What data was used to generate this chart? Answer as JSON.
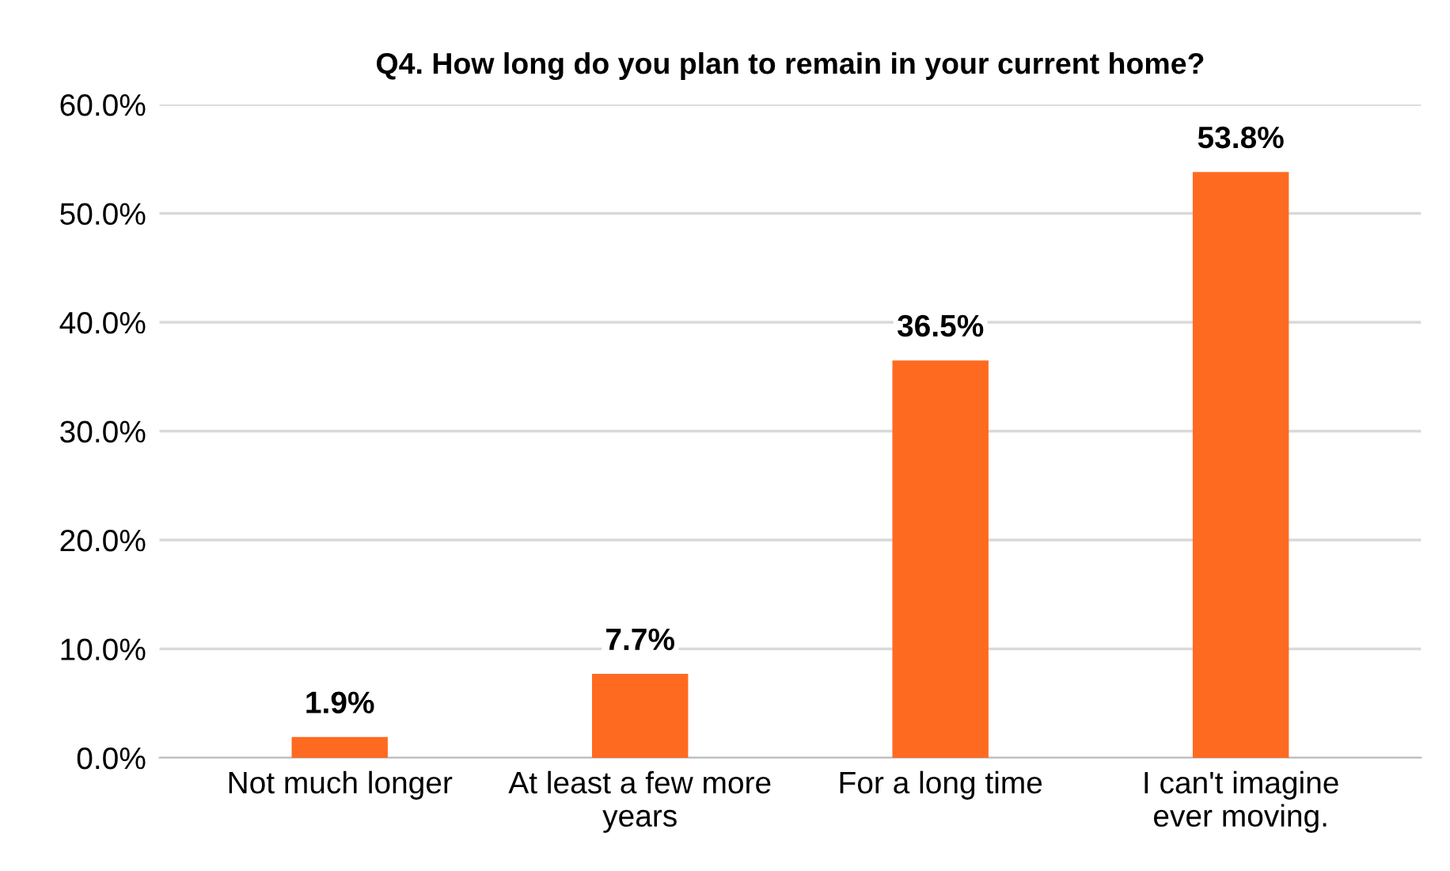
{
  "chart_data": {
    "type": "bar",
    "title": "Q4. How long do you plan to remain in your current home?",
    "categories": [
      "Not much longer",
      "At least a few more\nyears",
      "For a long time",
      "I can't imagine\never moving."
    ],
    "values": [
      1.9,
      7.7,
      36.5,
      53.8
    ],
    "color": "#ff6a21",
    "value_labels": [
      "1.9%",
      "7.7%",
      "36.5%",
      "53.8%"
    ],
    "ylim": [
      0,
      60
    ],
    "yticks": [
      {
        "value": 0,
        "label": "0.0%"
      },
      {
        "value": 10,
        "label": "10.0%"
      },
      {
        "value": 20,
        "label": "20.0%"
      },
      {
        "value": 30,
        "label": "30.0%"
      },
      {
        "value": 40,
        "label": "40.0%"
      },
      {
        "value": 50,
        "label": "50.0%"
      },
      {
        "value": 60,
        "label": "60.0%"
      }
    ],
    "grid": "y",
    "legend": false
  }
}
